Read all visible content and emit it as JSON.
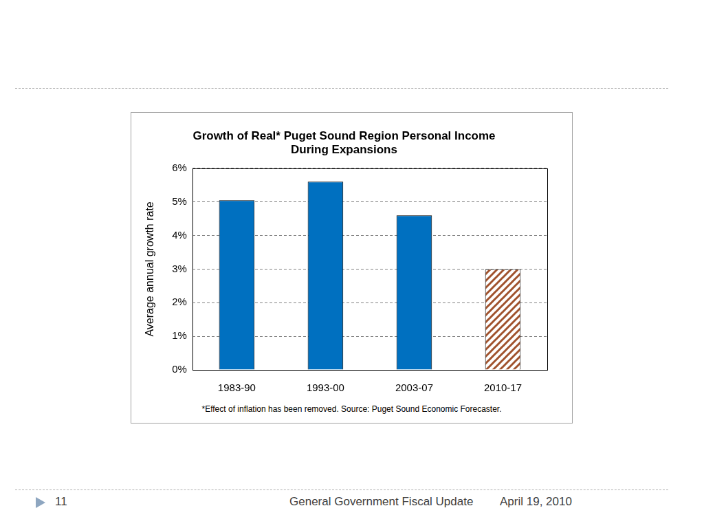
{
  "chart_data": {
    "type": "bar",
    "title": [
      "Growth of Real* Puget Sound Region Personal Income",
      "During Expansions"
    ],
    "y_label": "Average annual growth rate",
    "categories": [
      "1983-90",
      "1993-00",
      "2003-07",
      "2010-17"
    ],
    "values": [
      5.05,
      5.6,
      4.6,
      3
    ],
    "colors": [
      "#0070c0",
      "#0070c0",
      "#0070c0",
      "#a0522d"
    ],
    "ylim": [
      0,
      6
    ],
    "yticks": [
      {
        "value": 0,
        "label": "0%"
      },
      {
        "value": 1,
        "label": "1%"
      },
      {
        "value": 2,
        "label": "2%"
      },
      {
        "value": 3,
        "label": "3%"
      },
      {
        "value": 4,
        "label": "4%"
      },
      {
        "value": 5,
        "label": "5%"
      },
      {
        "value": 6,
        "label": "6%"
      }
    ],
    "grid": true,
    "note": "*Effect of inflation has been removed. Source: Puget Sound Economic Forecaster."
  },
  "footer": {
    "page": "11",
    "title": "General Government Fiscal Update",
    "date": "April 19, 2010"
  }
}
